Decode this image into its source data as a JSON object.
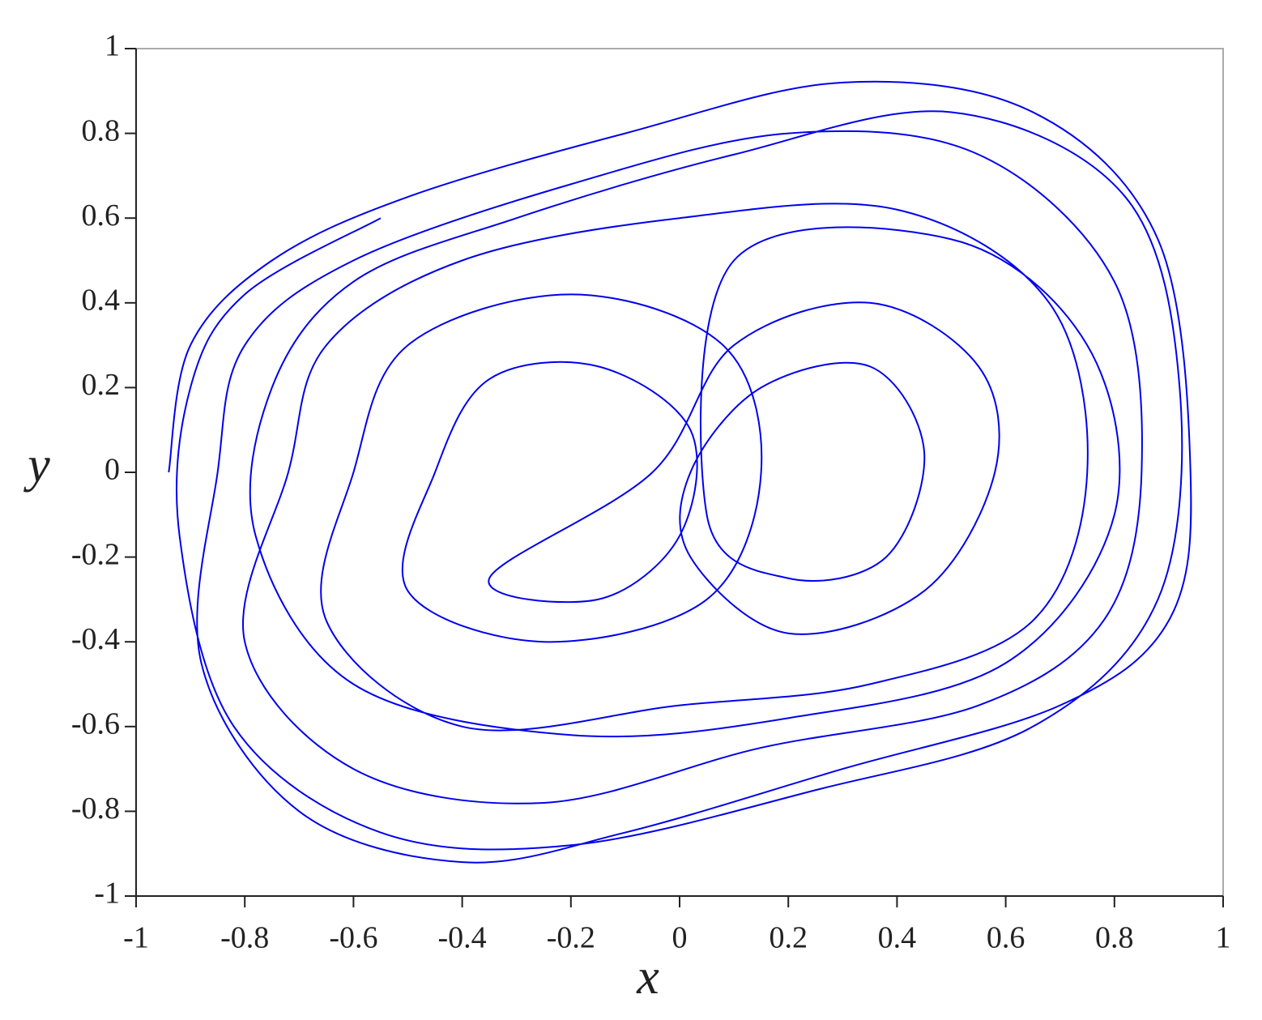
{
  "chart_data": {
    "type": "line",
    "x_label": "x",
    "y_label": "y",
    "x": [
      -0.94,
      -0.9,
      -0.75,
      -0.5,
      -0.1,
      0.3,
      0.65,
      0.88,
      0.94,
      0.9,
      0.7,
      0.3,
      -0.1,
      -0.4,
      -0.7,
      -0.88,
      -0.85,
      -0.8,
      -0.6,
      -0.2,
      0.2,
      0.55,
      0.8,
      0.85,
      0.78,
      0.55,
      0.15,
      -0.25,
      -0.6,
      -0.8,
      -0.72,
      -0.65,
      -0.4,
      0,
      0.4,
      0.68,
      0.75,
      0.65,
      0.35,
      0,
      -0.4,
      -0.65,
      -0.6,
      -0.5,
      -0.2,
      0.08,
      0.15,
      0.05,
      -0.25,
      -0.5,
      -0.45,
      -0.35,
      -0.15,
      0.02,
      0,
      -0.15,
      -0.35,
      -0.05,
      0.1,
      0.35,
      0.55,
      0.58,
      0.45,
      0.2,
      0.02,
      0.02,
      0.15,
      0.35,
      0.45,
      0.38,
      0.2,
      0.05,
      0.1,
      0.5,
      0.75,
      0.8,
      0.6,
      0.2,
      -0.2,
      -0.6,
      -0.78,
      -0.75,
      -0.6,
      -0.3,
      0.1,
      0.5,
      0.82,
      0.92,
      0.88,
      0.65,
      0.25,
      -0.2,
      -0.55,
      -0.82,
      -0.92,
      -0.9,
      -0.8,
      -0.55
    ],
    "values": [
      0,
      0.3,
      0.5,
      0.65,
      0.8,
      0.92,
      0.85,
      0.55,
      0,
      -0.35,
      -0.55,
      -0.7,
      -0.85,
      -0.92,
      -0.8,
      -0.45,
      0,
      0.3,
      0.5,
      0.68,
      0.8,
      0.75,
      0.45,
      0,
      -0.35,
      -0.55,
      -0.65,
      -0.78,
      -0.7,
      -0.4,
      0,
      0.3,
      0.5,
      0.6,
      0.62,
      0.4,
      0,
      -0.35,
      -0.5,
      -0.55,
      -0.6,
      -0.35,
      0,
      0.3,
      0.42,
      0.3,
      0,
      -0.3,
      -0.4,
      -0.28,
      0,
      0.22,
      0.25,
      0.1,
      -0.15,
      -0.3,
      -0.25,
      0,
      0.3,
      0.4,
      0.25,
      0,
      -0.28,
      -0.38,
      -0.2,
      0,
      0.2,
      0.25,
      0.05,
      -0.2,
      -0.25,
      -0.1,
      0.5,
      0.55,
      0.3,
      -0.1,
      -0.45,
      -0.58,
      -0.62,
      -0.5,
      -0.15,
      0.2,
      0.45,
      0.6,
      0.75,
      0.85,
      0.65,
      0.2,
      -0.3,
      -0.6,
      -0.75,
      -0.88,
      -0.85,
      -0.6,
      -0.15,
      0.2,
      0.42,
      0.6
    ],
    "color": "#0000ee",
    "xlim": [
      -1,
      1
    ],
    "xticks": [
      -1,
      -0.8,
      -0.6,
      -0.4,
      -0.2,
      0,
      0.2,
      0.4,
      0.6,
      0.8,
      1
    ],
    "ylim": [
      -1,
      1
    ],
    "yticks": [
      -1,
      -0.8,
      -0.6,
      -0.4,
      -0.2,
      0,
      0.2,
      0.4,
      0.6,
      0.8,
      1
    ]
  }
}
